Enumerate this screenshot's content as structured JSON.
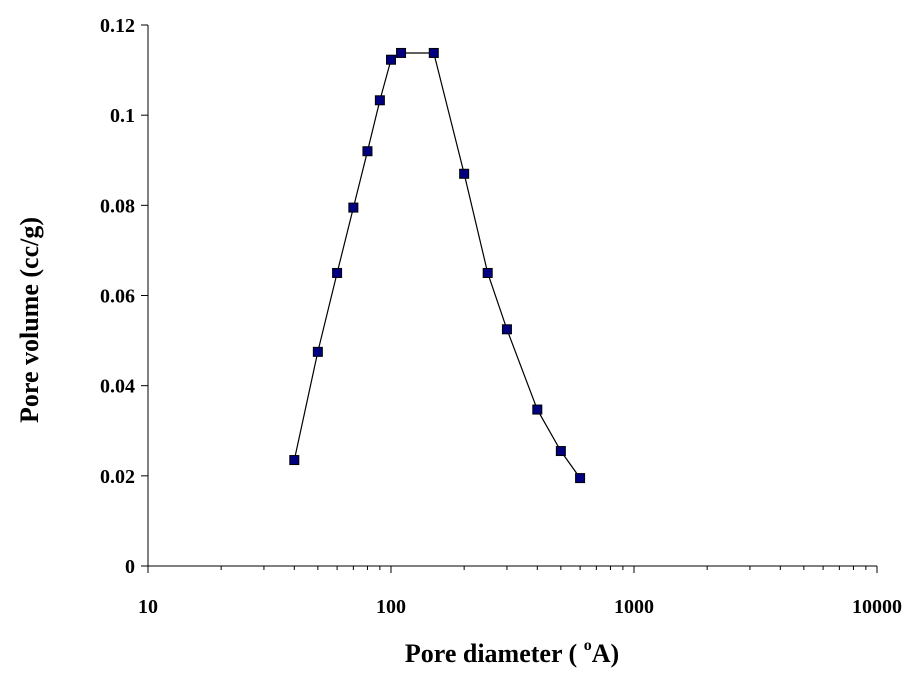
{
  "chart_data": {
    "type": "scatter",
    "title": "",
    "xlabel_main": "Pore diameter ( ",
    "xlabel_sup": "o",
    "xlabel_tail": "A)",
    "ylabel": "Pore volume (cc/g)",
    "x_scale": "log",
    "xlim": [
      10,
      10000
    ],
    "ylim": [
      0,
      0.12
    ],
    "x_ticks": [
      "10",
      "100",
      "1000",
      "10000"
    ],
    "y_ticks": [
      "0",
      "0.02",
      "0.04",
      "0.06",
      "0.08",
      "0.1",
      "0.12"
    ],
    "grid": false,
    "legend": "none",
    "marker_color": "#000080",
    "line_color": "#000000",
    "series": [
      {
        "x": [
          40,
          50,
          60,
          70,
          80,
          90,
          100,
          110,
          150,
          200,
          250,
          300,
          400,
          500,
          600
        ],
        "y": [
          0.0235,
          0.0475,
          0.065,
          0.0795,
          0.092,
          0.1033,
          0.1123,
          0.1138,
          0.1138,
          0.087,
          0.065,
          0.0525,
          0.0347,
          0.0255,
          0.0195
        ]
      }
    ]
  }
}
